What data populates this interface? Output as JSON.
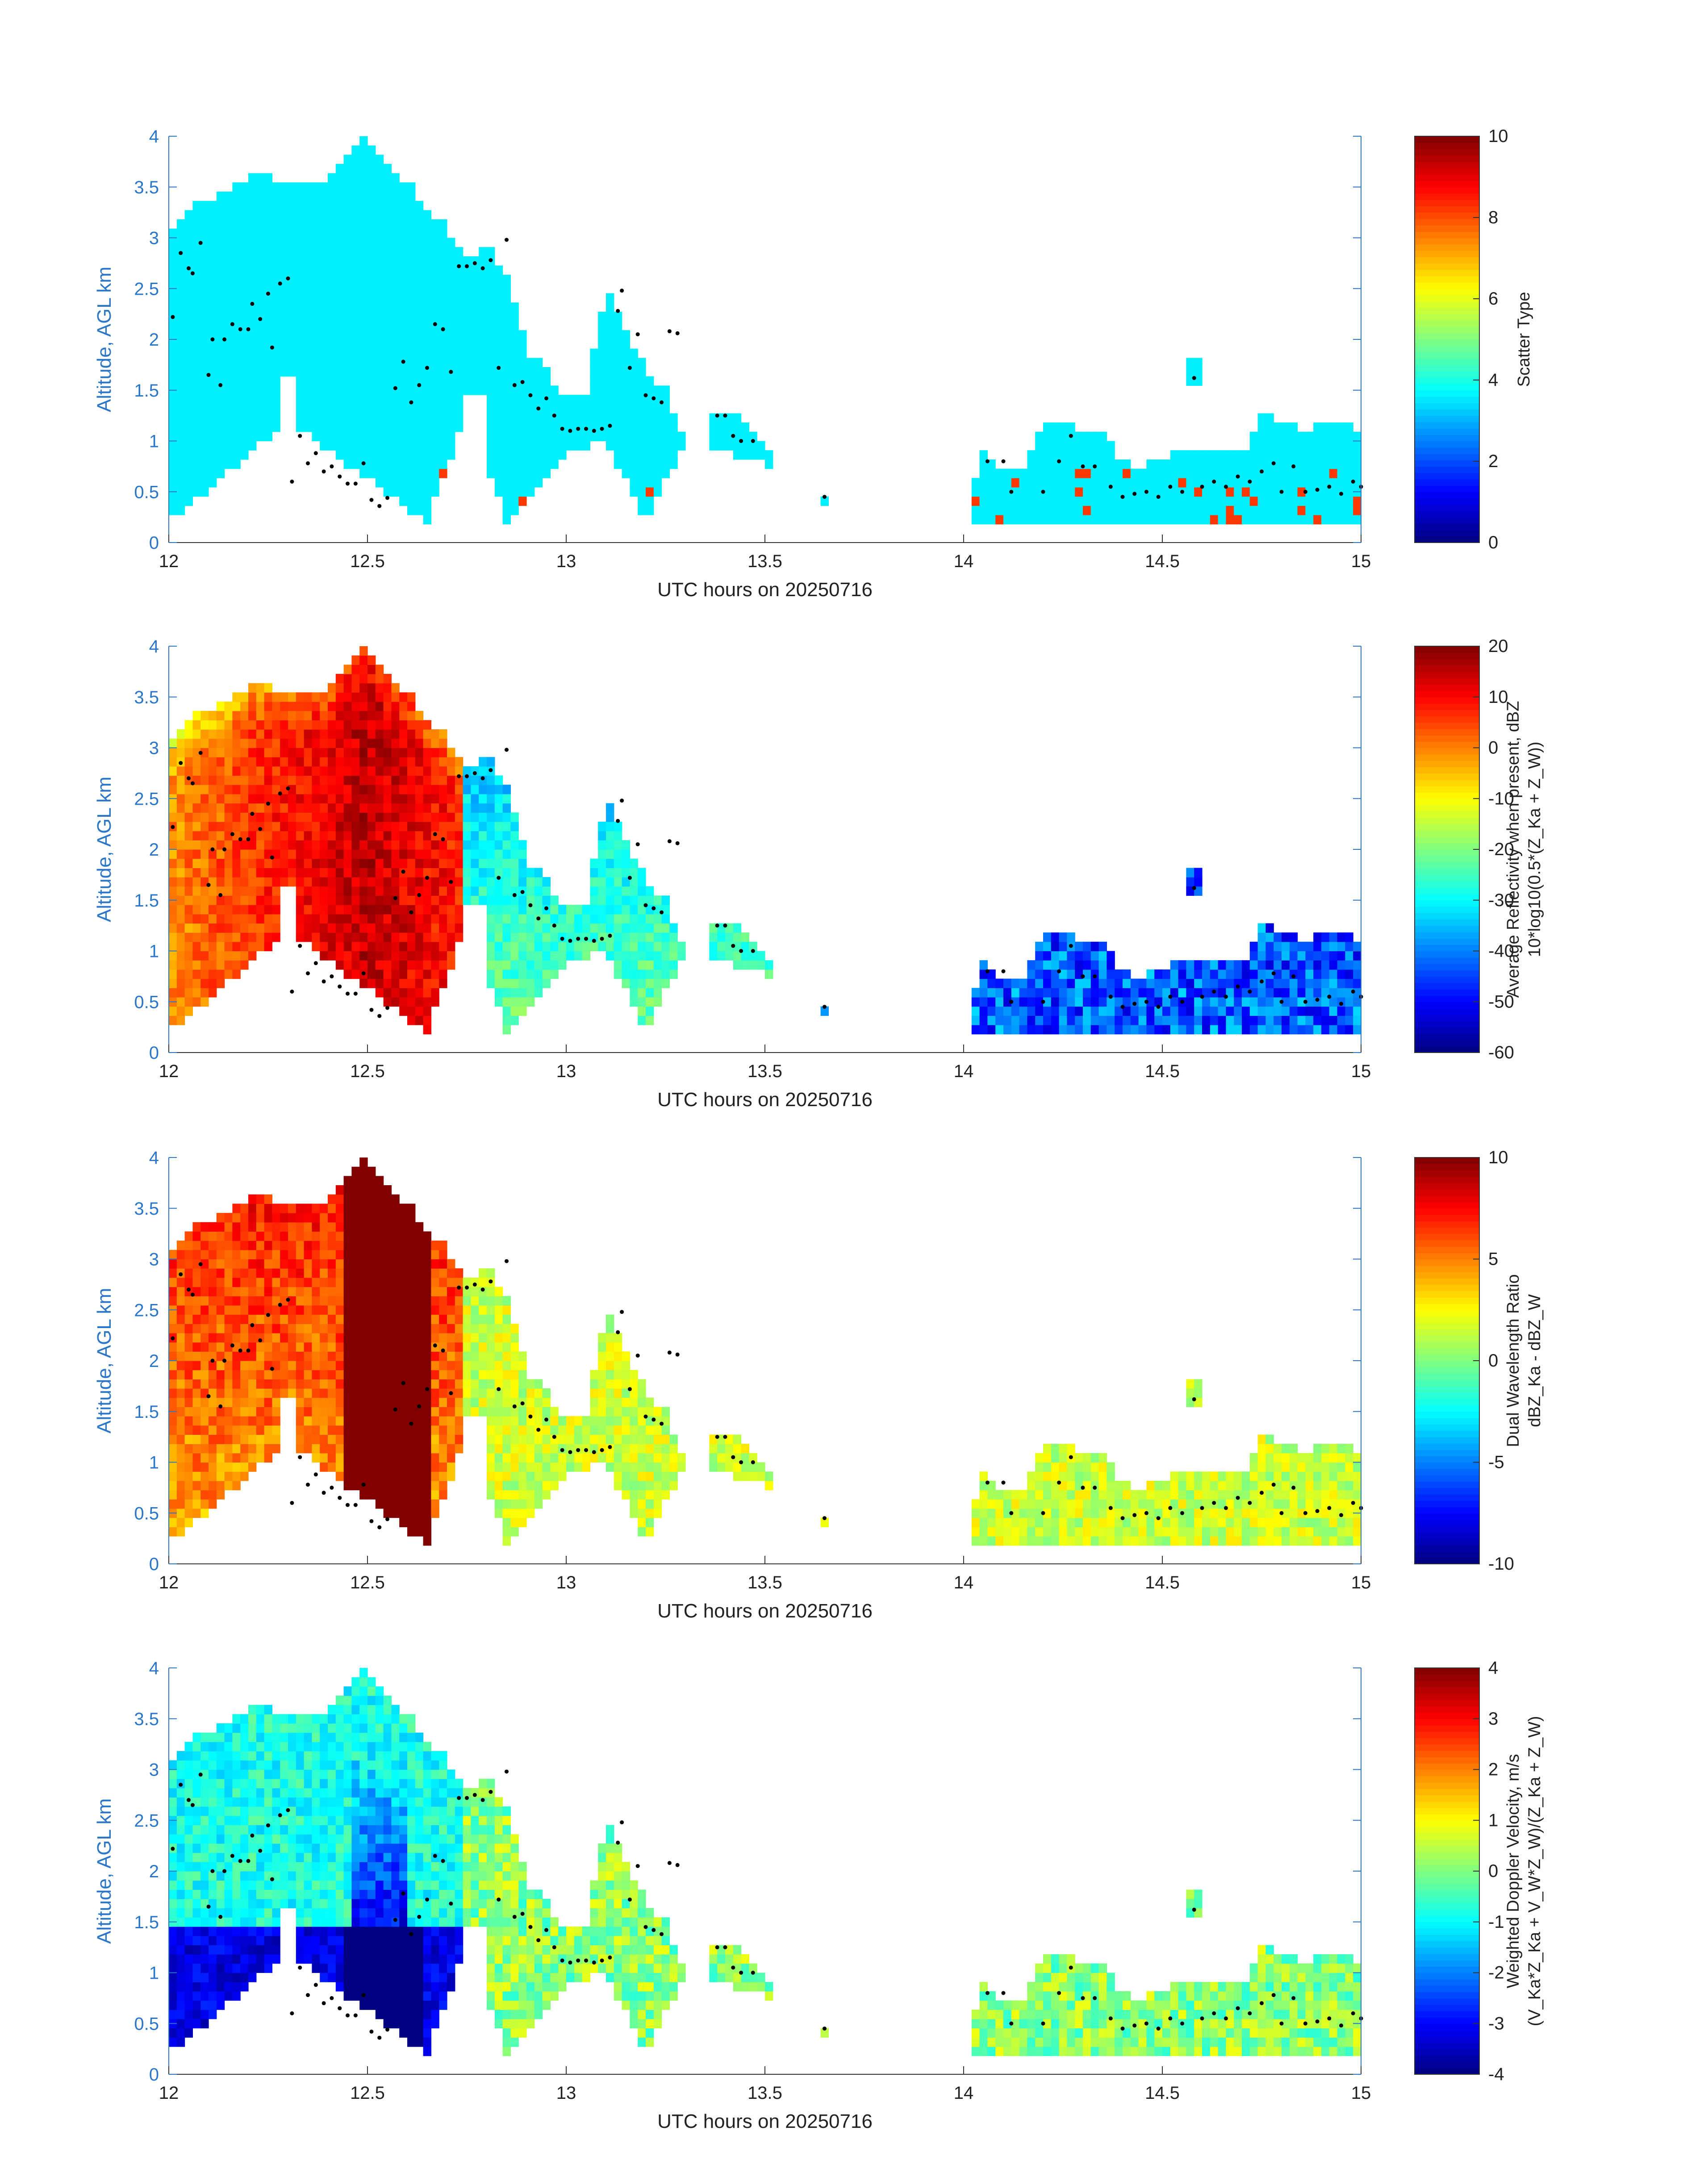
{
  "colors": {
    "axis": "#2a76c9",
    "text": "#222222",
    "dot": "#000000"
  },
  "shared": {
    "xlabel": "UTC hours on 20250716",
    "ylabel": "Altitude, AGL km",
    "xlim": [
      12,
      15
    ],
    "ylim": [
      0,
      4
    ],
    "xticks": [
      "12",
      "12.5",
      "13",
      "13.5",
      "14",
      "14.5",
      "15"
    ],
    "yticks": [
      "0",
      "0.5",
      "1",
      "1.5",
      "2",
      "2.5",
      "3",
      "3.5",
      "4"
    ]
  },
  "chart_data": [
    {
      "type": "heatmap",
      "id": "scatter",
      "colorbar_label_lines": [
        "Scatter Type"
      ],
      "clim": [
        0,
        10
      ],
      "cticks": [
        "0",
        "2",
        "4",
        "6",
        "8",
        "10"
      ],
      "background_value": 3.6,
      "secondary_value": 8.2,
      "mode": "categorical"
    },
    {
      "type": "heatmap",
      "id": "reflectivity",
      "colorbar_label_lines": [
        "Average Reflectivity when present, dBZ",
        "10*log10(0.5*(Z_Ka + Z_W))"
      ],
      "clim": [
        -60,
        20
      ],
      "cticks": [
        "-60",
        "-50",
        "-40",
        "-30",
        "-20",
        "-10",
        "0",
        "10",
        "20"
      ],
      "mode": "reflectivity"
    },
    {
      "type": "heatmap",
      "id": "dwr",
      "colorbar_label_lines": [
        "Dual Wavelength Ratio",
        "dBZ_Ka - dBZ_W"
      ],
      "clim": [
        -10,
        10
      ],
      "cticks": [
        "-10",
        "-5",
        "0",
        "5",
        "10"
      ],
      "mode": "dwr"
    },
    {
      "type": "heatmap",
      "id": "doppler",
      "colorbar_label_lines": [
        "Weighted Doppler Velocity, m/s",
        "(V_Ka*Z_Ka + V_W*Z_W)/(Z_Ka + Z_W)"
      ],
      "clim": [
        -4,
        4
      ],
      "cticks": [
        "-4",
        "-3",
        "-2",
        "-1",
        "0",
        "1",
        "2",
        "3",
        "4"
      ],
      "mode": "doppler"
    }
  ],
  "cloud_top_km": [
    [
      12.0,
      3.05
    ],
    [
      12.05,
      3.3
    ],
    [
      12.1,
      3.35
    ],
    [
      12.15,
      3.45
    ],
    [
      12.2,
      3.6
    ],
    [
      12.25,
      3.6
    ],
    [
      12.3,
      3.55
    ],
    [
      12.35,
      3.55
    ],
    [
      12.4,
      3.55
    ],
    [
      12.45,
      3.85
    ],
    [
      12.5,
      4.0
    ],
    [
      12.55,
      3.7
    ],
    [
      12.6,
      3.55
    ],
    [
      12.65,
      3.3
    ],
    [
      12.7,
      3.1
    ],
    [
      12.75,
      2.8
    ],
    [
      12.8,
      2.95
    ],
    [
      12.85,
      2.65
    ],
    [
      12.9,
      1.9
    ],
    [
      12.95,
      1.7
    ],
    [
      13.0,
      1.4
    ],
    [
      13.05,
      1.45
    ],
    [
      13.1,
      2.5
    ],
    [
      13.15,
      2.1
    ],
    [
      13.2,
      1.7
    ],
    [
      13.25,
      1.5
    ],
    [
      13.3,
      1.0
    ],
    [
      13.4,
      1.35
    ],
    [
      13.5,
      1.0
    ],
    [
      13.6,
      0.2
    ],
    [
      14.0,
      0.2
    ],
    [
      14.05,
      0.9
    ],
    [
      14.1,
      0.7
    ],
    [
      14.15,
      0.7
    ],
    [
      14.2,
      1.2
    ],
    [
      14.25,
      1.2
    ],
    [
      14.3,
      1.1
    ],
    [
      14.35,
      1.1
    ],
    [
      14.4,
      0.8
    ],
    [
      14.45,
      0.75
    ],
    [
      14.5,
      0.85
    ],
    [
      14.6,
      0.9
    ],
    [
      14.65,
      0.95
    ],
    [
      14.7,
      0.85
    ],
    [
      14.75,
      1.25
    ],
    [
      14.8,
      1.2
    ],
    [
      14.85,
      1.1
    ],
    [
      14.9,
      1.15
    ],
    [
      14.95,
      1.2
    ],
    [
      15.0,
      1.05
    ]
  ],
  "cloud_base_km": [
    [
      12.0,
      0.2
    ],
    [
      12.3,
      1.2
    ],
    [
      12.65,
      0.2
    ],
    [
      12.75,
      1.3
    ],
    [
      12.85,
      0.2
    ],
    [
      13.0,
      0.9
    ],
    [
      13.1,
      1.0
    ],
    [
      13.2,
      0.2
    ],
    [
      13.3,
      1.0
    ],
    [
      14.0,
      0.2
    ],
    [
      15.0,
      0.2
    ]
  ],
  "marker_points": [
    [
      12.01,
      2.22
    ],
    [
      12.03,
      2.85
    ],
    [
      12.05,
      2.7
    ],
    [
      12.06,
      2.65
    ],
    [
      12.08,
      2.95
    ],
    [
      12.1,
      1.65
    ],
    [
      12.11,
      2.0
    ],
    [
      12.13,
      1.55
    ],
    [
      12.14,
      2.0
    ],
    [
      12.16,
      2.15
    ],
    [
      12.18,
      2.1
    ],
    [
      12.2,
      2.1
    ],
    [
      12.21,
      2.35
    ],
    [
      12.23,
      2.2
    ],
    [
      12.25,
      2.45
    ],
    [
      12.26,
      1.92
    ],
    [
      12.28,
      2.55
    ],
    [
      12.3,
      2.6
    ],
    [
      12.31,
      0.6
    ],
    [
      12.33,
      1.05
    ],
    [
      12.35,
      0.78
    ],
    [
      12.37,
      0.88
    ],
    [
      12.39,
      0.7
    ],
    [
      12.41,
      0.75
    ],
    [
      12.43,
      0.65
    ],
    [
      12.45,
      0.58
    ],
    [
      12.47,
      0.58
    ],
    [
      12.49,
      0.78
    ],
    [
      12.51,
      0.42
    ],
    [
      12.53,
      0.36
    ],
    [
      12.55,
      0.44
    ],
    [
      12.57,
      1.52
    ],
    [
      12.59,
      1.78
    ],
    [
      12.61,
      1.38
    ],
    [
      12.63,
      1.55
    ],
    [
      12.65,
      1.72
    ],
    [
      12.67,
      2.15
    ],
    [
      12.69,
      2.1
    ],
    [
      12.71,
      1.68
    ],
    [
      12.73,
      2.72
    ],
    [
      12.75,
      2.72
    ],
    [
      12.77,
      2.75
    ],
    [
      12.79,
      2.7
    ],
    [
      12.81,
      2.78
    ],
    [
      12.83,
      1.72
    ],
    [
      12.85,
      2.98
    ],
    [
      12.87,
      1.55
    ],
    [
      12.89,
      1.58
    ],
    [
      12.91,
      1.45
    ],
    [
      12.93,
      1.32
    ],
    [
      12.95,
      1.42
    ],
    [
      12.97,
      1.25
    ],
    [
      12.99,
      1.12
    ],
    [
      13.01,
      1.1
    ],
    [
      13.03,
      1.12
    ],
    [
      13.05,
      1.12
    ],
    [
      13.07,
      1.1
    ],
    [
      13.09,
      1.12
    ],
    [
      13.11,
      1.15
    ],
    [
      13.13,
      2.28
    ],
    [
      13.14,
      2.48
    ],
    [
      13.16,
      1.72
    ],
    [
      13.18,
      2.05
    ],
    [
      13.2,
      1.45
    ],
    [
      13.22,
      1.42
    ],
    [
      13.24,
      1.38
    ],
    [
      13.26,
      2.08
    ],
    [
      13.28,
      2.06
    ],
    [
      13.38,
      1.25
    ],
    [
      13.4,
      1.25
    ],
    [
      13.42,
      1.05
    ],
    [
      13.44,
      1.0
    ],
    [
      13.47,
      1.0
    ],
    [
      13.65,
      0.45
    ],
    [
      14.06,
      0.8
    ],
    [
      14.1,
      0.8
    ],
    [
      14.12,
      0.5
    ],
    [
      14.2,
      0.5
    ],
    [
      14.24,
      0.8
    ],
    [
      14.27,
      1.05
    ],
    [
      14.3,
      0.75
    ],
    [
      14.33,
      0.75
    ],
    [
      14.37,
      0.55
    ],
    [
      14.4,
      0.45
    ],
    [
      14.43,
      0.48
    ],
    [
      14.46,
      0.5
    ],
    [
      14.49,
      0.45
    ],
    [
      14.52,
      0.55
    ],
    [
      14.55,
      0.5
    ],
    [
      14.58,
      1.62
    ],
    [
      14.6,
      0.55
    ],
    [
      14.63,
      0.6
    ],
    [
      14.66,
      0.55
    ],
    [
      14.69,
      0.65
    ],
    [
      14.72,
      0.6
    ],
    [
      14.75,
      0.7
    ],
    [
      14.78,
      0.78
    ],
    [
      14.8,
      0.5
    ],
    [
      14.83,
      0.75
    ],
    [
      14.86,
      0.5
    ],
    [
      14.89,
      0.52
    ],
    [
      14.92,
      0.55
    ],
    [
      14.95,
      0.48
    ],
    [
      14.98,
      0.6
    ],
    [
      15.0,
      0.55
    ]
  ]
}
